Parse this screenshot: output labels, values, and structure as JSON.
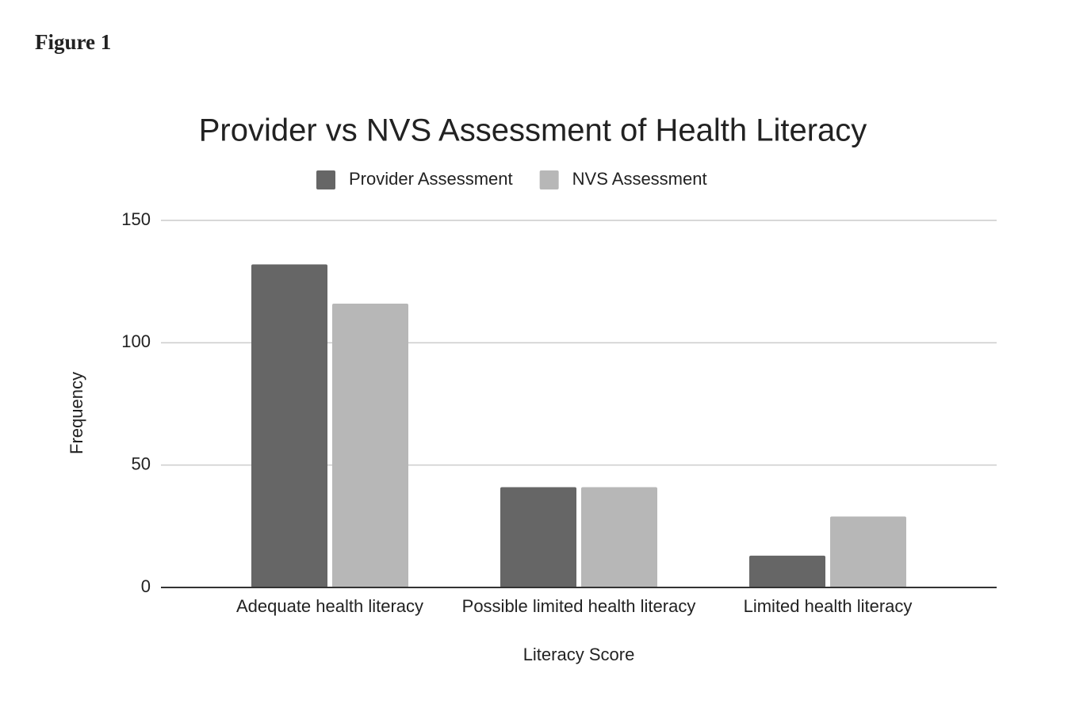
{
  "figure_label": "Figure 1",
  "chart_data": {
    "type": "bar",
    "title": "Provider vs NVS Assessment of Health Literacy",
    "x_label": "Literacy Score",
    "y_label": "Frequency",
    "categories": [
      "Adequate health literacy",
      "Possible limited health literacy",
      "Limited health literacy"
    ],
    "series": [
      {
        "name": "Provider Assessment",
        "color": "#666666",
        "values": [
          132,
          41,
          13
        ]
      },
      {
        "name": "NVS Assessment",
        "color": "#b7b7b7",
        "values": [
          116,
          41,
          29
        ]
      }
    ],
    "ylim": [
      0,
      150
    ],
    "yticks": [
      0,
      50,
      100,
      150
    ],
    "grid": true,
    "legend": "top"
  }
}
